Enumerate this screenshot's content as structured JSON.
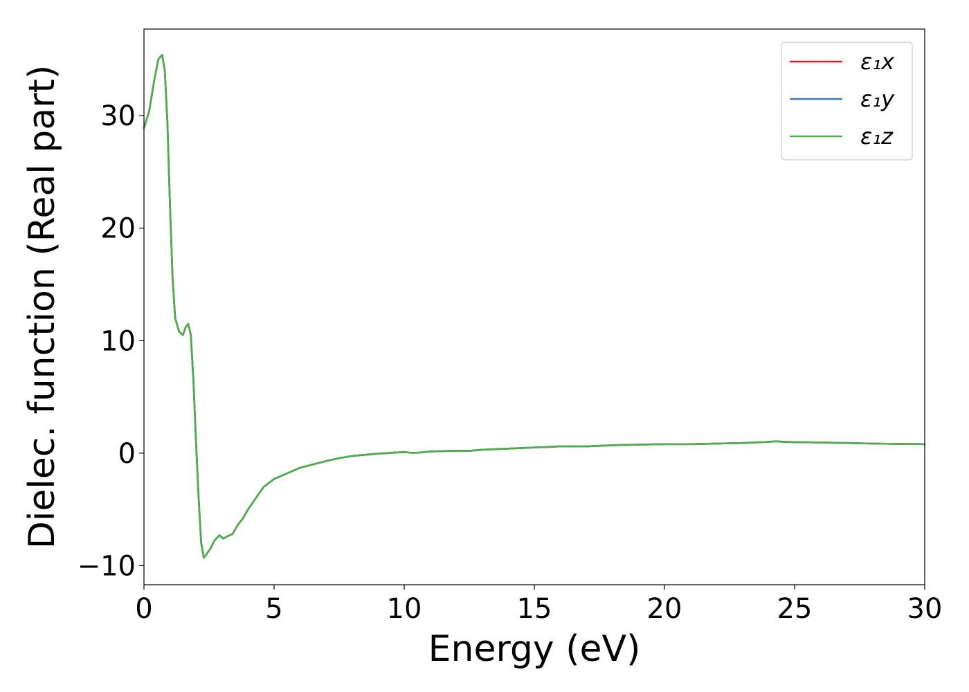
{
  "chart_data": {
    "type": "line",
    "xlabel": "Energy (eV)",
    "ylabel": "Dielec. function (Real part)",
    "xlim": [
      0,
      30
    ],
    "ylim": [
      -11.7,
      37.7
    ],
    "xticks": [
      0,
      5,
      10,
      15,
      20,
      25,
      30
    ],
    "xtick_labels": [
      "0",
      "5",
      "10",
      "15",
      "20",
      "25",
      "30"
    ],
    "yticks": [
      -10,
      0,
      10,
      20,
      30
    ],
    "ytick_labels": [
      "−10",
      "0",
      "10",
      "20",
      "30"
    ],
    "grid": false,
    "legend_position": "top-right",
    "x": [
      0,
      0.2,
      0.4,
      0.55,
      0.7,
      0.8,
      0.9,
      1.0,
      1.1,
      1.2,
      1.35,
      1.5,
      1.6,
      1.7,
      1.8,
      1.9,
      2.0,
      2.1,
      2.2,
      2.3,
      2.4,
      2.55,
      2.7,
      2.9,
      3.05,
      3.2,
      3.4,
      3.6,
      3.8,
      4.0,
      4.3,
      4.6,
      5.0,
      5.5,
      6.0,
      6.5,
      7.0,
      7.5,
      8.0,
      9.0,
      10.0,
      10.3,
      10.6,
      11.0,
      11.8,
      12.5,
      13.0,
      14.0,
      15.0,
      16.0,
      17.0,
      18.0,
      19.0,
      20.0,
      21.0,
      22.0,
      23.0,
      24.0,
      24.3,
      24.6,
      25.0,
      26.0,
      27.0,
      28.0,
      29.0,
      30.0
    ],
    "series": [
      {
        "name": "ε₁x",
        "color": "#e41a1c",
        "values": [
          28.9,
          30.4,
          33.2,
          35.0,
          35.4,
          34.0,
          29.5,
          22.0,
          15.5,
          12.0,
          10.8,
          10.5,
          11.2,
          11.5,
          10.5,
          6.5,
          1.0,
          -4.0,
          -8.0,
          -9.3,
          -9.0,
          -8.5,
          -7.8,
          -7.3,
          -7.6,
          -7.4,
          -7.2,
          -6.4,
          -5.8,
          -5.0,
          -4.0,
          -3.0,
          -2.3,
          -1.8,
          -1.3,
          -1.0,
          -0.7,
          -0.45,
          -0.25,
          -0.05,
          0.1,
          0.02,
          0.05,
          0.15,
          0.2,
          0.2,
          0.3,
          0.4,
          0.5,
          0.6,
          0.6,
          0.7,
          0.75,
          0.8,
          0.8,
          0.85,
          0.9,
          1.0,
          1.05,
          1.0,
          0.98,
          0.95,
          0.9,
          0.85,
          0.82,
          0.8
        ]
      },
      {
        "name": "ε₁y",
        "color": "#377eb8",
        "values": [
          28.9,
          30.4,
          33.2,
          35.0,
          35.4,
          34.0,
          29.5,
          22.0,
          15.5,
          12.0,
          10.8,
          10.5,
          11.2,
          11.5,
          10.5,
          6.5,
          1.0,
          -4.0,
          -8.0,
          -9.3,
          -9.0,
          -8.5,
          -7.8,
          -7.3,
          -7.6,
          -7.4,
          -7.2,
          -6.4,
          -5.8,
          -5.0,
          -4.0,
          -3.0,
          -2.3,
          -1.8,
          -1.3,
          -1.0,
          -0.7,
          -0.45,
          -0.25,
          -0.05,
          0.1,
          0.02,
          0.05,
          0.15,
          0.2,
          0.2,
          0.3,
          0.4,
          0.5,
          0.6,
          0.6,
          0.7,
          0.75,
          0.8,
          0.8,
          0.85,
          0.9,
          1.0,
          1.05,
          1.0,
          0.98,
          0.95,
          0.9,
          0.85,
          0.82,
          0.8
        ]
      },
      {
        "name": "ε₁z",
        "color": "#4daf4a",
        "values": [
          28.9,
          30.4,
          33.2,
          35.0,
          35.4,
          34.0,
          29.5,
          22.0,
          15.5,
          12.0,
          10.8,
          10.5,
          11.2,
          11.5,
          10.5,
          6.5,
          1.0,
          -4.0,
          -8.0,
          -9.3,
          -9.0,
          -8.5,
          -7.8,
          -7.3,
          -7.6,
          -7.4,
          -7.2,
          -6.4,
          -5.8,
          -5.0,
          -4.0,
          -3.0,
          -2.3,
          -1.8,
          -1.3,
          -1.0,
          -0.7,
          -0.45,
          -0.25,
          -0.05,
          0.1,
          0.02,
          0.05,
          0.15,
          0.2,
          0.2,
          0.3,
          0.4,
          0.5,
          0.6,
          0.6,
          0.7,
          0.75,
          0.8,
          0.8,
          0.85,
          0.9,
          1.0,
          1.05,
          1.0,
          0.98,
          0.95,
          0.9,
          0.85,
          0.82,
          0.8
        ]
      }
    ]
  }
}
